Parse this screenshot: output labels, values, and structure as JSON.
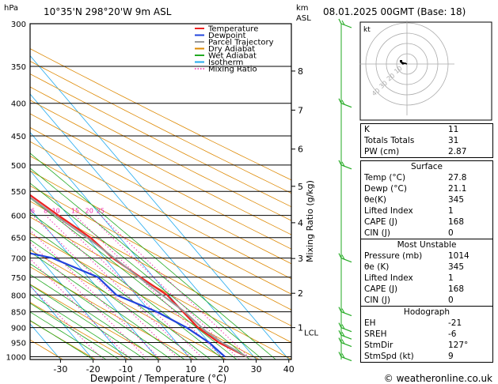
{
  "header": {
    "units": "hPa",
    "location": "10°35'N  298°20'W  9m ASL",
    "km_unit": "km",
    "km_ref": "ASL",
    "run": "08.01.2025  00GMT  (Base: 18)"
  },
  "legend": [
    {
      "label": "Temperature",
      "color": "#ee2222",
      "dash": false
    },
    {
      "label": "Dewpoint",
      "color": "#2244dd",
      "dash": false
    },
    {
      "label": "Parcel Trajectory",
      "color": "#999999",
      "dash": false
    },
    {
      "label": "Dry Adiabat",
      "color": "#dd8800",
      "dash": false
    },
    {
      "label": "Wet Adiabat",
      "color": "#22aa22",
      "dash": false
    },
    {
      "label": "Isotherm",
      "color": "#22aaee",
      "dash": false
    },
    {
      "label": "Mixing Ratio",
      "color": "#ee22aa",
      "dash": true
    }
  ],
  "chart_data": {
    "type": "line",
    "title": "Skew-T log-P diagram",
    "xlabel": "Dewpoint / Temperature (°C)",
    "ylabel": "hPa",
    "right_label": "Mixing Ratio (g/kg)",
    "pressure_ticks": [
      300,
      350,
      400,
      450,
      500,
      550,
      600,
      650,
      700,
      750,
      800,
      850,
      900,
      950,
      1000
    ],
    "temp_ticks": [
      -30,
      -20,
      -10,
      0,
      10,
      20,
      30,
      40
    ],
    "plim": [
      300,
      1010
    ],
    "tlim": [
      -40,
      40
    ],
    "km_ticks": [
      {
        "label": "8",
        "p": 356
      },
      {
        "label": "7",
        "p": 410
      },
      {
        "label": "6",
        "p": 472
      },
      {
        "label": "5",
        "p": 540
      },
      {
        "label": "4",
        "p": 616
      },
      {
        "label": "3",
        "p": 701
      },
      {
        "label": "2",
        "p": 795
      },
      {
        "label": "1",
        "p": 900
      }
    ],
    "lcl": {
      "label": "LCL",
      "p": 915
    },
    "mixing_ratio_labels": [
      {
        "label": "1",
        "w": 1
      },
      {
        "label": "2",
        "w": 2
      },
      {
        "label": "3",
        "w": 3
      },
      {
        "label": "4",
        "w": 4
      },
      {
        "label": "6",
        "w": 6
      },
      {
        "label": "8",
        "w": 8
      },
      {
        "label": "10",
        "w": 10
      },
      {
        "label": "15",
        "w": 15
      },
      {
        "label": "20",
        "w": 20
      },
      {
        "label": "25",
        "w": 25
      }
    ],
    "series": [
      {
        "name": "Temperature",
        "color": "#ee2222",
        "points": [
          [
            1000,
            27.8
          ],
          [
            950,
            23
          ],
          [
            900,
            20.5
          ],
          [
            850,
            20
          ],
          [
            800,
            19.5
          ],
          [
            750,
            16
          ],
          [
            700,
            12.5
          ],
          [
            650,
            11
          ],
          [
            600,
            7
          ],
          [
            550,
            3
          ],
          [
            500,
            -2
          ],
          [
            450,
            -8
          ],
          [
            400,
            -14
          ],
          [
            350,
            -22
          ],
          [
            300,
            -31
          ]
        ]
      },
      {
        "name": "Dewpoint",
        "color": "#2244dd",
        "points": [
          [
            1000,
            21.1
          ],
          [
            950,
            20
          ],
          [
            900,
            17
          ],
          [
            850,
            12
          ],
          [
            800,
            4
          ],
          [
            750,
            3
          ],
          [
            700,
            -6
          ],
          [
            650,
            -30
          ],
          [
            600,
            -30
          ],
          [
            550,
            -27
          ],
          [
            500,
            -23
          ],
          [
            450,
            -28
          ],
          [
            400,
            -38
          ],
          [
            350,
            -23
          ],
          [
            300,
            -25
          ]
        ]
      },
      {
        "name": "Parcel Trajectory",
        "color": "#999999",
        "points": [
          [
            1000,
            27.8
          ],
          [
            950,
            24
          ],
          [
            915,
            22
          ],
          [
            850,
            20.5
          ],
          [
            800,
            18
          ],
          [
            750,
            15.5
          ],
          [
            700,
            13
          ],
          [
            650,
            10
          ],
          [
            600,
            6
          ],
          [
            550,
            2
          ],
          [
            500,
            -3
          ],
          [
            450,
            -9
          ],
          [
            400,
            -15
          ],
          [
            350,
            -22
          ],
          [
            300,
            -32
          ]
        ]
      }
    ],
    "barbs": [
      {
        "p": 1000,
        "speed": 10
      },
      {
        "p": 950,
        "speed": 10
      },
      {
        "p": 925,
        "speed": 10
      },
      {
        "p": 900,
        "speed": 10
      },
      {
        "p": 850,
        "speed": 10
      },
      {
        "p": 700,
        "speed": 10
      },
      {
        "p": 500,
        "speed": 10
      },
      {
        "p": 400,
        "speed": 10
      },
      {
        "p": 300,
        "speed": 10
      }
    ],
    "hodograph": {
      "unit": "kt",
      "ring_labels": [
        "10",
        "20",
        "30",
        "40"
      ],
      "points": [
        [
          0,
          0
        ],
        [
          -3,
          1
        ],
        [
          -6,
          2
        ],
        [
          -4,
          0
        ],
        [
          -1,
          1
        ]
      ]
    }
  },
  "indices": [
    {
      "label": "K",
      "value": "11"
    },
    {
      "label": "Totals Totals",
      "value": "31"
    },
    {
      "label": "PW (cm)",
      "value": "2.87"
    }
  ],
  "surface": {
    "title": "Surface",
    "rows": [
      {
        "label": "Temp (°C)",
        "value": "27.8"
      },
      {
        "label": "Dewp (°C)",
        "value": "21.1"
      },
      {
        "label": "θe(K)",
        "value": "345"
      },
      {
        "label": "Lifted Index",
        "value": "1"
      },
      {
        "label": "CAPE (J)",
        "value": "168"
      },
      {
        "label": "CIN (J)",
        "value": "0"
      }
    ]
  },
  "most_unstable": {
    "title": "Most Unstable",
    "rows": [
      {
        "label": "Pressure (mb)",
        "value": "1014"
      },
      {
        "label": "θe (K)",
        "value": "345"
      },
      {
        "label": "Lifted Index",
        "value": "1"
      },
      {
        "label": "CAPE (J)",
        "value": "168"
      },
      {
        "label": "CIN (J)",
        "value": "0"
      }
    ]
  },
  "hodograph_table": {
    "title": "Hodograph",
    "rows": [
      {
        "label": "EH",
        "value": "-21"
      },
      {
        "label": "SREH",
        "value": "-6"
      },
      {
        "label": "StmDir",
        "value": "127°"
      },
      {
        "label": "StmSpd (kt)",
        "value": "9"
      }
    ]
  },
  "footer": {
    "copyright": "© weatheronline.co.uk"
  }
}
